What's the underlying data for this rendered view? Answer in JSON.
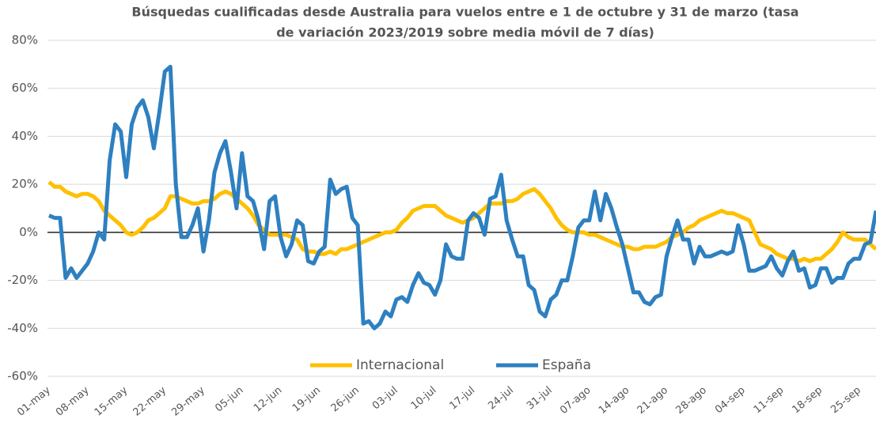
{
  "chart_data": {
    "type": "line",
    "title": [
      "Búsquedas cualificadas desde Australia para vuelos entre e 1 de octubre y 31 de marzo (tasa",
      "de variación 2023/2019 sobre media móvil de 7 días)"
    ],
    "categories": [
      "01-may",
      null,
      null,
      null,
      null,
      null,
      null,
      "08-may",
      null,
      null,
      null,
      null,
      null,
      null,
      "15-may",
      null,
      null,
      null,
      null,
      null,
      null,
      "22-may",
      null,
      null,
      null,
      null,
      null,
      null,
      "29-may",
      null,
      null,
      null,
      null,
      null,
      null,
      "05-jun",
      null,
      null,
      null,
      null,
      null,
      null,
      "12-jun",
      null,
      null,
      null,
      null,
      null,
      null,
      "19-jun",
      null,
      null,
      null,
      null,
      null,
      null,
      "26-jun",
      null,
      null,
      null,
      null,
      null,
      null,
      "03-jul",
      null,
      null,
      null,
      null,
      null,
      null,
      "10-jul",
      null,
      null,
      null,
      null,
      null,
      null,
      "17-jul",
      null,
      null,
      null,
      null,
      null,
      null,
      "24-jul",
      null,
      null,
      null,
      null,
      null,
      null,
      "31-jul",
      null,
      null,
      null,
      null,
      null,
      null,
      "07-ago",
      null,
      null,
      null,
      null,
      null,
      null,
      "14-ago",
      null,
      null,
      null,
      null,
      null,
      null,
      "21-ago",
      null,
      null,
      null,
      null,
      null,
      null,
      "28-ago",
      null,
      null,
      null,
      null,
      null,
      null,
      "04-sep",
      null,
      null,
      null,
      null,
      null,
      null,
      "11-sep",
      null,
      null,
      null,
      null,
      null,
      null,
      "18-sep",
      null,
      null,
      null,
      null,
      null,
      null,
      "25-sep",
      null,
      null,
      null
    ],
    "series": [
      {
        "name": "Internacional",
        "color": "#FFC000",
        "values": [
          21,
          19,
          19,
          17,
          16,
          15,
          16,
          16,
          15,
          13,
          9,
          7,
          5,
          3,
          0,
          -1,
          0,
          2,
          5,
          6,
          8,
          10,
          15,
          15,
          14,
          13,
          12,
          12,
          13,
          13,
          14,
          16,
          17,
          16,
          14,
          12,
          10,
          7,
          3,
          1,
          -1,
          -1,
          -1,
          -1,
          -2,
          -3,
          -7,
          -8,
          -8,
          -9,
          -9,
          -8,
          -9,
          -7,
          -7,
          -6,
          -5,
          -4,
          -3,
          -2,
          -1,
          0,
          0,
          1,
          4,
          6,
          9,
          10,
          11,
          11,
          11,
          9,
          7,
          6,
          5,
          4,
          5,
          6,
          8,
          10,
          12,
          12,
          12,
          13,
          13,
          14,
          16,
          17,
          18,
          16,
          13,
          10,
          6,
          3,
          1,
          0,
          0,
          0,
          -1,
          -1,
          -2,
          -3,
          -4,
          -5,
          -6,
          -6,
          -7,
          -7,
          -6,
          -6,
          -6,
          -5,
          -4,
          -2,
          -1,
          0,
          2,
          3,
          5,
          6,
          7,
          8,
          9,
          8,
          8,
          7,
          6,
          5,
          0,
          -5,
          -6,
          -7,
          -9,
          -10,
          -11,
          -11,
          -12,
          -11,
          -12,
          -11,
          -11,
          -9,
          -7,
          -4,
          0,
          -2,
          -3,
          -3,
          -3,
          -5,
          -7
        ]
      },
      {
        "name": "España",
        "color": "#2E80C0",
        "values": [
          7,
          6,
          6,
          -19,
          -15,
          -19,
          -16,
          -13,
          -8,
          0,
          -3,
          30,
          45,
          42,
          23,
          45,
          52,
          55,
          48,
          35,
          50,
          67,
          69,
          20,
          -2,
          -2,
          3,
          10,
          -8,
          5,
          25,
          33,
          38,
          25,
          10,
          33,
          15,
          13,
          5,
          -7,
          13,
          15,
          -2,
          -10,
          -5,
          5,
          3,
          -12,
          -13,
          -8,
          -6,
          22,
          16,
          18,
          19,
          6,
          3,
          -38,
          -37,
          -40,
          -38,
          -33,
          -35,
          -28,
          -27,
          -29,
          -22,
          -17,
          -21,
          -22,
          -26,
          -20,
          -5,
          -10,
          -11,
          -11,
          5,
          8,
          6,
          -1,
          14,
          15,
          24,
          5,
          -3,
          -10,
          -10,
          -22,
          -24,
          -33,
          -35,
          -28,
          -26,
          -20,
          -20,
          -10,
          2,
          5,
          5,
          17,
          5,
          16,
          10,
          2,
          -5,
          -15,
          -25,
          -25,
          -29,
          -30,
          -27,
          -26,
          -10,
          -2,
          5,
          -3,
          -3,
          -13,
          -6,
          -10,
          -10,
          -9,
          -8,
          -9,
          -8,
          3,
          -5,
          -16,
          -16,
          -15,
          -14,
          -10,
          -15,
          -18,
          -12,
          -8,
          -16,
          -15,
          -23,
          -22,
          -15,
          -15,
          -21,
          -19,
          -19,
          -13,
          -11,
          -11,
          -5,
          -4,
          9
        ]
      }
    ],
    "ylim": [
      -60,
      80
    ],
    "yticks": [
      {
        "value": -60,
        "label": "-60%"
      },
      {
        "value": -40,
        "label": "-40%"
      },
      {
        "value": -20,
        "label": "-20%"
      },
      {
        "value": 0,
        "label": "0%"
      },
      {
        "value": 20,
        "label": "20%"
      },
      {
        "value": 40,
        "label": "40%"
      },
      {
        "value": 60,
        "label": "60%"
      },
      {
        "value": 80,
        "label": "80%"
      }
    ],
    "grid": true
  }
}
